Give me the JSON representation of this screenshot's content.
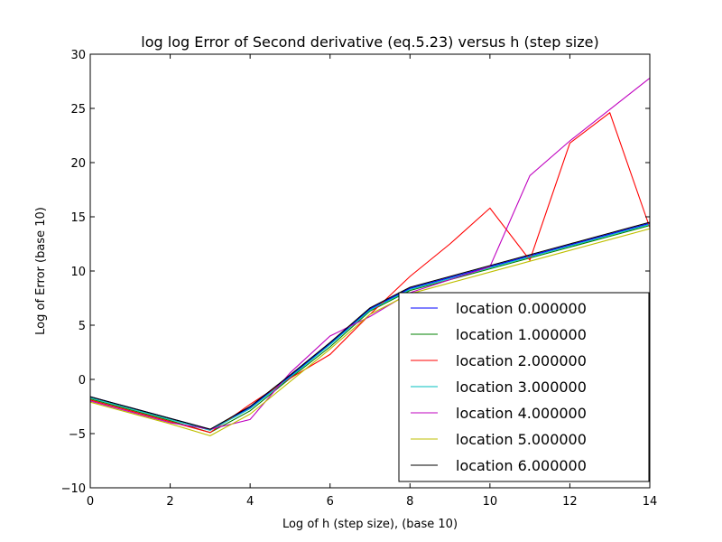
{
  "chart_data": {
    "type": "line",
    "title": "log log Error of Second derivative (eq.5.23) versus h (step size)",
    "xlabel": "Log of h (step size), (base 10)",
    "ylabel": "Log of Error (base 10)",
    "xlim": [
      0,
      14
    ],
    "ylim": [
      -10,
      30
    ],
    "xticks": [
      0,
      2,
      4,
      6,
      8,
      10,
      12,
      14
    ],
    "yticks": [
      -10,
      -5,
      0,
      5,
      10,
      15,
      20,
      25,
      30
    ],
    "grid": false,
    "legend_position": "bottom-right",
    "x": [
      0,
      1,
      2,
      3,
      4,
      5,
      6,
      7,
      8,
      9,
      10,
      11,
      12,
      13,
      14
    ],
    "series": [
      {
        "name": "location 0.000000",
        "color": "#0000ff",
        "values": [
          -1.6,
          -2.6,
          -3.6,
          -4.6,
          -2.6,
          0.3,
          3.3,
          6.5,
          8.4,
          9.4,
          10.4,
          11.4,
          12.4,
          13.4,
          14.4
        ]
      },
      {
        "name": "location 1.000000",
        "color": "#008000",
        "values": [
          -1.8,
          -2.8,
          -3.8,
          -4.9,
          -2.9,
          0.1,
          3.0,
          6.3,
          8.2,
          9.2,
          10.2,
          11.2,
          12.2,
          13.2,
          14.2
        ]
      },
      {
        "name": "location 2.000000",
        "color": "#ff0000",
        "values": [
          -1.9,
          -2.9,
          -3.9,
          -4.9,
          -2.3,
          0.1,
          2.3,
          6.0,
          9.5,
          12.5,
          15.8,
          11.0,
          21.8,
          24.6,
          14.0
        ]
      },
      {
        "name": "location 3.000000",
        "color": "#00bfbf",
        "values": [
          -1.7,
          -2.7,
          -3.7,
          -4.7,
          -2.7,
          0.2,
          3.2,
          6.4,
          8.3,
          9.3,
          10.3,
          11.3,
          12.3,
          13.3,
          14.3
        ]
      },
      {
        "name": "location 4.000000",
        "color": "#bf00bf",
        "values": [
          -2.0,
          -3.0,
          -4.0,
          -4.6,
          -3.7,
          0.6,
          4.0,
          5.8,
          8.0,
          9.2,
          10.4,
          18.8,
          22.0,
          24.9,
          27.8
        ]
      },
      {
        "name": "location 5.000000",
        "color": "#bfbf00",
        "values": [
          -2.1,
          -3.1,
          -4.1,
          -5.2,
          -3.2,
          -0.2,
          2.8,
          6.0,
          7.9,
          8.9,
          9.9,
          10.9,
          11.9,
          12.9,
          13.9
        ]
      },
      {
        "name": "location 6.000000",
        "color": "#000000",
        "values": [
          -1.6,
          -2.6,
          -3.6,
          -4.6,
          -2.5,
          0.4,
          3.4,
          6.6,
          8.5,
          9.5,
          10.5,
          11.5,
          12.5,
          13.5,
          14.5
        ]
      }
    ]
  }
}
